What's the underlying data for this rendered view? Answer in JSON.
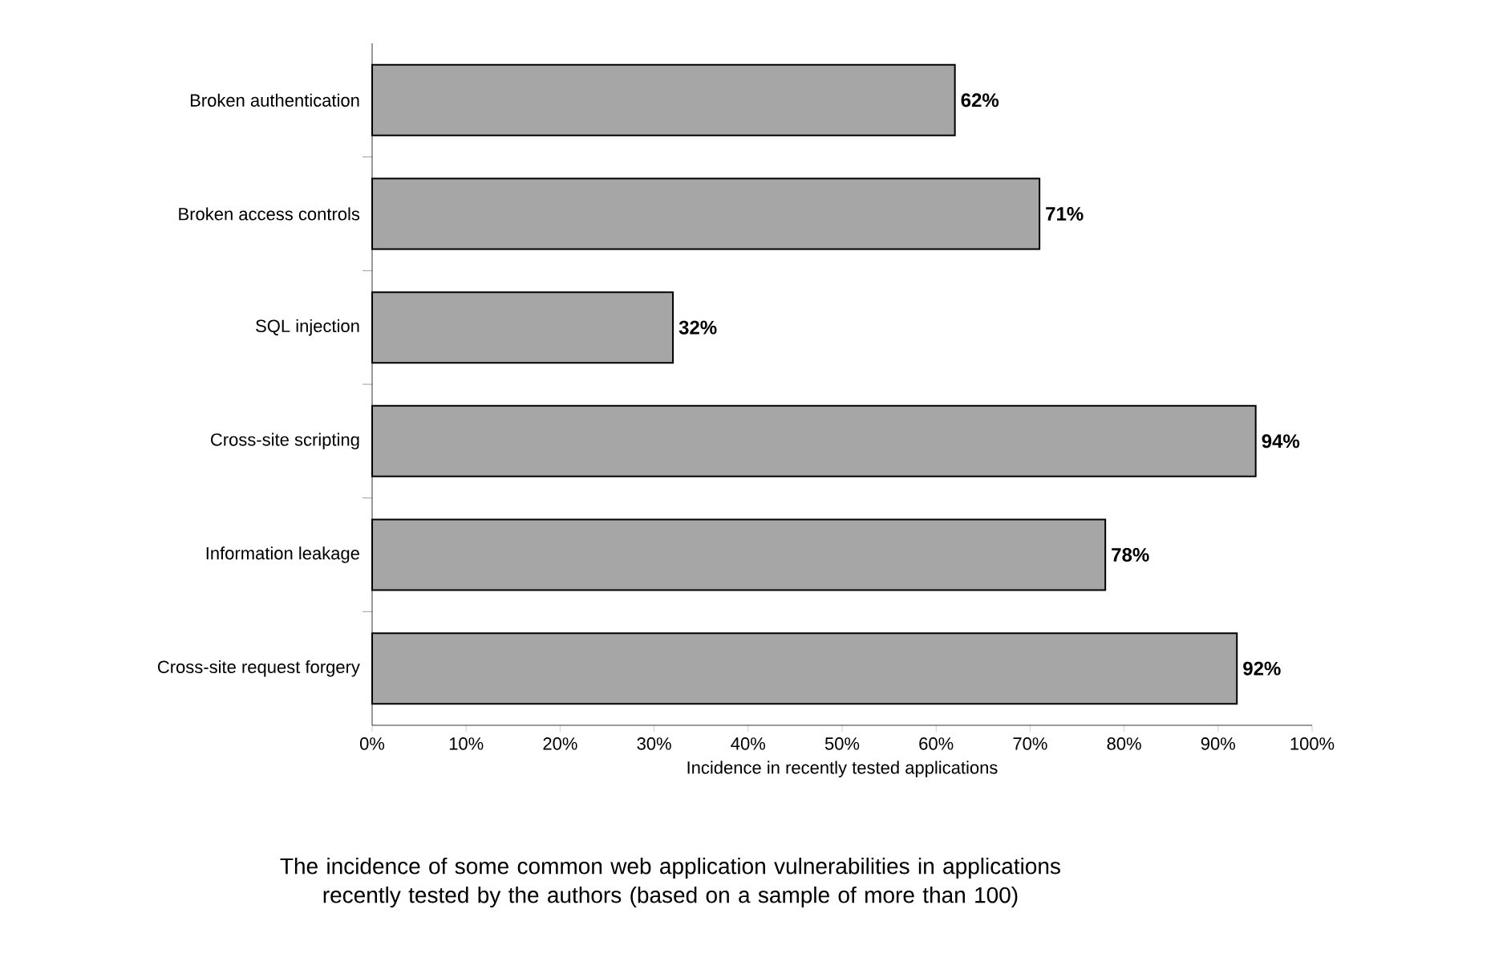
{
  "chart_data": {
    "type": "bar",
    "orientation": "horizontal",
    "categories": [
      "Broken authentication",
      "Broken access controls",
      "SQL injection",
      "Cross-site scripting",
      "Information leakage",
      "Cross-site request forgery"
    ],
    "values": [
      62,
      71,
      32,
      94,
      78,
      92
    ],
    "value_labels": [
      "62%",
      "71%",
      "32%",
      "94%",
      "78%",
      "92%"
    ],
    "color": "#a6a6a6",
    "xlim": [
      0,
      100
    ],
    "xticks": [
      {
        "value": 0,
        "label": "0%"
      },
      {
        "value": 10,
        "label": "10%"
      },
      {
        "value": 20,
        "label": "20%"
      },
      {
        "value": 30,
        "label": "30%"
      },
      {
        "value": 40,
        "label": "40%"
      },
      {
        "value": 50,
        "label": "50%"
      },
      {
        "value": 60,
        "label": "60%"
      },
      {
        "value": 70,
        "label": "70%"
      },
      {
        "value": 80,
        "label": "80%"
      },
      {
        "value": 90,
        "label": "90%"
      },
      {
        "value": 100,
        "label": "100%"
      }
    ],
    "xlabel": "Incidence in recently tested applications",
    "annotations": [
      "The incidence of some common web application vulnerabilities in applications recently tested by the authors (based on a sample of more than 100)"
    ]
  }
}
